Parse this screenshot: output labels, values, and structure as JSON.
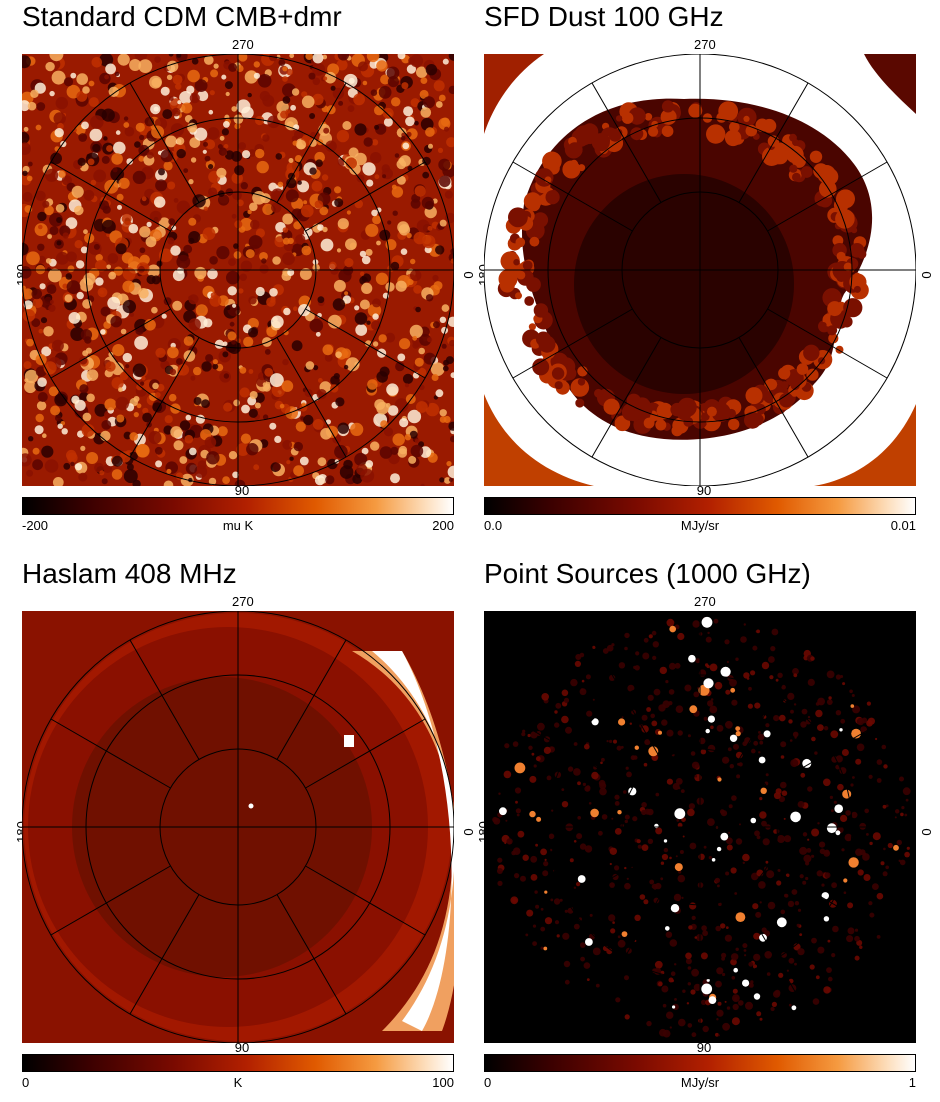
{
  "panels": [
    {
      "title": "Standard CDM CMB+dmr",
      "labels": {
        "top": "270",
        "bottom": "90",
        "left": "180",
        "right": "0"
      },
      "colorbar": {
        "min": "-200",
        "unit": "mu K",
        "max": "200"
      },
      "map_style": "cmb"
    },
    {
      "title": "SFD Dust 100 GHz",
      "labels": {
        "top": "270",
        "bottom": "90",
        "left": "180",
        "right": "0"
      },
      "colorbar": {
        "min": "0.0",
        "unit": "MJy/sr",
        "max": "0.01"
      },
      "map_style": "dust"
    },
    {
      "title": "Haslam 408 MHz",
      "labels": {
        "top": "270",
        "bottom": "90",
        "left": "180",
        "right": "0"
      },
      "colorbar": {
        "min": "0",
        "unit": "K",
        "max": "100"
      },
      "map_style": "haslam"
    },
    {
      "title": "Point Sources (1000 GHz)",
      "labels": {
        "top": "270",
        "bottom": "90",
        "left": "180",
        "right": "0"
      },
      "colorbar": {
        "min": "0",
        "unit": "MJy/sr",
        "max": "1"
      },
      "map_style": "points"
    }
  ],
  "colors": {
    "colormap": [
      "#000000",
      "#3a0000",
      "#7a0a00",
      "#b22000",
      "#e05a00",
      "#f59a40",
      "#fde0c0",
      "#ffffff"
    ],
    "grid": "#000000"
  }
}
